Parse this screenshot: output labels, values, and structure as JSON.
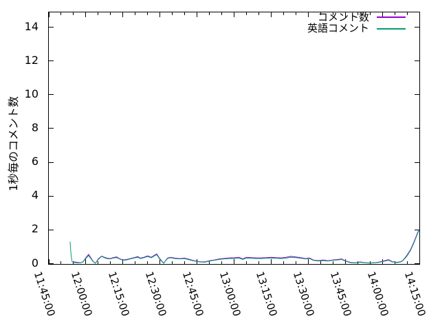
{
  "colors": {
    "axis": "#000000",
    "text": "#000000",
    "series_comments": "#9400d3",
    "series_english": "#009e73",
    "background": "#ffffff"
  },
  "chart_data": {
    "type": "line",
    "title": "",
    "xlabel": "",
    "ylabel": "1秒毎のコメント数",
    "grid": false,
    "legend_position": "top-right-inside",
    "x_axis": {
      "tick_labels": [
        "11:45:00",
        "12:00:00",
        "12:15:00",
        "12:30:00",
        "12:45:00",
        "13:00:00",
        "13:15:00",
        "13:30:00",
        "13:45:00",
        "14:00:00",
        "14:15:00"
      ],
      "range_minutes": [
        0,
        150
      ],
      "major_step_min": 15,
      "minor_step_min": 5
    },
    "y_axis": {
      "ticks": [
        "0",
        "2",
        "4",
        "6",
        "8",
        "10",
        "12",
        "14"
      ],
      "tick_values": [
        0,
        2,
        4,
        6,
        8,
        10,
        12,
        14
      ],
      "lim": [
        0,
        14.88
      ]
    },
    "series": [
      {
        "name": "コメント数",
        "color": "#9400d3",
        "points": [
          [
            9.7,
            0.12
          ],
          [
            10.5,
            0.1
          ],
          [
            11.5,
            0.08
          ],
          [
            12.6,
            0.05
          ],
          [
            13.9,
            0.12
          ],
          [
            15,
            0.35
          ],
          [
            16.1,
            0.55
          ],
          [
            17,
            0.35
          ],
          [
            18,
            0.12
          ],
          [
            18.9,
            0.03
          ],
          [
            20,
            0.28
          ],
          [
            21.4,
            0.45
          ],
          [
            22.5,
            0.38
          ],
          [
            23.5,
            0.33
          ],
          [
            25,
            0.3
          ],
          [
            26,
            0.36
          ],
          [
            27.5,
            0.4
          ],
          [
            28.5,
            0.3
          ],
          [
            30,
            0.22
          ],
          [
            31.5,
            0.25
          ],
          [
            33,
            0.3
          ],
          [
            34.5,
            0.36
          ],
          [
            36,
            0.42
          ],
          [
            37,
            0.33
          ],
          [
            38.5,
            0.38
          ],
          [
            40,
            0.46
          ],
          [
            41.5,
            0.38
          ],
          [
            43,
            0.52
          ],
          [
            43.7,
            0.58
          ],
          [
            45,
            0.28
          ],
          [
            46.5,
            0.03
          ],
          [
            48,
            0.33
          ],
          [
            49.3,
            0.38
          ],
          [
            51,
            0.33
          ],
          [
            53,
            0.3
          ],
          [
            55,
            0.33
          ],
          [
            57,
            0.25
          ],
          [
            59,
            0.17
          ],
          [
            61,
            0.12
          ],
          [
            63,
            0.1
          ],
          [
            65,
            0.17
          ],
          [
            67,
            0.22
          ],
          [
            69,
            0.28
          ],
          [
            71,
            0.31
          ],
          [
            73,
            0.34
          ],
          [
            75,
            0.35
          ],
          [
            77,
            0.38
          ],
          [
            78.5,
            0.28
          ],
          [
            80,
            0.38
          ],
          [
            82,
            0.36
          ],
          [
            84,
            0.34
          ],
          [
            86,
            0.34
          ],
          [
            88,
            0.36
          ],
          [
            90,
            0.38
          ],
          [
            92,
            0.36
          ],
          [
            94,
            0.34
          ],
          [
            96,
            0.38
          ],
          [
            98,
            0.43
          ],
          [
            100,
            0.4
          ],
          [
            102,
            0.36
          ],
          [
            104,
            0.3
          ],
          [
            105.5,
            0.34
          ],
          [
            107,
            0.22
          ],
          [
            109,
            0.18
          ],
          [
            111,
            0.22
          ],
          [
            113,
            0.17
          ],
          [
            115,
            0.22
          ],
          [
            117,
            0.25
          ],
          [
            118.5,
            0.28
          ],
          [
            120,
            0.17
          ],
          [
            122,
            0.08
          ],
          [
            124,
            0.05
          ],
          [
            126,
            0.1
          ],
          [
            128,
            0.06
          ],
          [
            130,
            0.04
          ],
          [
            132,
            0.06
          ],
          [
            134,
            0.1
          ],
          [
            136,
            0.18
          ],
          [
            137.5,
            0.24
          ],
          [
            139,
            0.12
          ],
          [
            141,
            0.08
          ],
          [
            142.5,
            0.12
          ],
          [
            143.5,
            0.22
          ],
          [
            145,
            0.5
          ],
          [
            146.5,
            0.85
          ],
          [
            148,
            1.35
          ],
          [
            149.3,
            1.85
          ],
          [
            150,
            2.02
          ]
        ]
      },
      {
        "name": "英語コメント",
        "color": "#009e73",
        "points": [
          [
            8.6,
            1.3
          ],
          [
            9,
            0.55
          ],
          [
            9.4,
            0.12
          ],
          [
            10.2,
            0.06
          ],
          [
            11.5,
            0.05
          ],
          [
            12.6,
            0.04
          ],
          [
            13.9,
            0.1
          ],
          [
            15,
            0.3
          ],
          [
            16.1,
            0.48
          ],
          [
            17,
            0.3
          ],
          [
            18,
            0.1
          ],
          [
            18.9,
            0.02
          ],
          [
            20,
            0.25
          ],
          [
            21.4,
            0.43
          ],
          [
            22.5,
            0.35
          ],
          [
            23.5,
            0.3
          ],
          [
            25,
            0.28
          ],
          [
            26,
            0.33
          ],
          [
            27.5,
            0.36
          ],
          [
            28.5,
            0.28
          ],
          [
            30,
            0.2
          ],
          [
            31.5,
            0.22
          ],
          [
            33,
            0.28
          ],
          [
            34.5,
            0.33
          ],
          [
            36,
            0.38
          ],
          [
            37,
            0.3
          ],
          [
            38.5,
            0.35
          ],
          [
            40,
            0.42
          ],
          [
            41.5,
            0.35
          ],
          [
            43,
            0.48
          ],
          [
            43.7,
            0.53
          ],
          [
            45,
            0.25
          ],
          [
            46.5,
            0.02
          ],
          [
            48,
            0.3
          ],
          [
            49.3,
            0.35
          ],
          [
            51,
            0.3
          ],
          [
            53,
            0.28
          ],
          [
            55,
            0.3
          ],
          [
            57,
            0.22
          ],
          [
            59,
            0.15
          ],
          [
            61,
            0.1
          ],
          [
            63,
            0.08
          ],
          [
            65,
            0.15
          ],
          [
            67,
            0.2
          ],
          [
            69,
            0.25
          ],
          [
            71,
            0.28
          ],
          [
            73,
            0.3
          ],
          [
            75,
            0.3
          ],
          [
            77,
            0.33
          ],
          [
            78.5,
            0.25
          ],
          [
            80,
            0.33
          ],
          [
            82,
            0.32
          ],
          [
            84,
            0.3
          ],
          [
            86,
            0.3
          ],
          [
            88,
            0.32
          ],
          [
            90,
            0.33
          ],
          [
            92,
            0.32
          ],
          [
            94,
            0.3
          ],
          [
            96,
            0.33
          ],
          [
            98,
            0.38
          ],
          [
            100,
            0.36
          ],
          [
            102,
            0.32
          ],
          [
            104,
            0.28
          ],
          [
            105.5,
            0.3
          ],
          [
            107,
            0.2
          ],
          [
            109,
            0.15
          ],
          [
            111,
            0.18
          ],
          [
            113,
            0.15
          ],
          [
            115,
            0.2
          ],
          [
            117,
            0.22
          ],
          [
            118.5,
            0.25
          ],
          [
            120,
            0.15
          ],
          [
            122,
            0.06
          ],
          [
            124,
            0.04
          ],
          [
            126,
            0.08
          ],
          [
            128,
            0.05
          ],
          [
            130,
            0.03
          ],
          [
            132,
            0.05
          ],
          [
            134,
            0.08
          ],
          [
            136,
            0.15
          ],
          [
            137.5,
            0.2
          ],
          [
            139,
            0.1
          ],
          [
            141,
            0.06
          ],
          [
            142.5,
            0.1
          ],
          [
            143.5,
            0.2
          ],
          [
            145,
            0.45
          ],
          [
            146.5,
            0.8
          ],
          [
            148,
            1.3
          ],
          [
            149.3,
            1.8
          ],
          [
            150,
            2.0
          ]
        ]
      }
    ]
  }
}
